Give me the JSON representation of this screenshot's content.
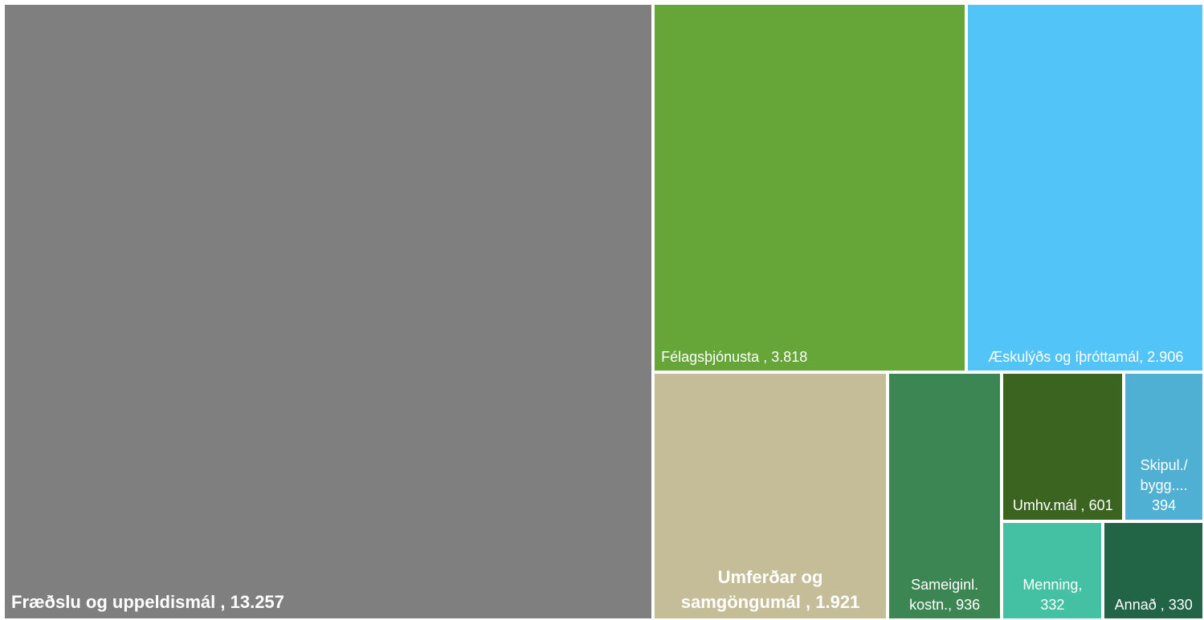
{
  "chart_data": {
    "type": "treemap",
    "categories": [
      "Fræðslu og uppeldismál ,",
      "Félagsþjónusta ,",
      "Æskulýðs og íþróttamál,",
      "Umferðar og samgöngumál ,",
      "Sameiginl. kostn.,",
      "Umhv.mál ,",
      "Skipul./ bygg....",
      "Menning,",
      "Annað ,"
    ],
    "values": [
      13257,
      3818,
      2906,
      1921,
      936,
      601,
      394,
      332,
      330
    ],
    "value_labels": [
      "13.257",
      "3.818",
      "2.906",
      "1.921",
      "936",
      "601",
      "394",
      "332",
      "330"
    ],
    "colors": [
      "#7f7f7f",
      "#66a638",
      "#52c4f7",
      "#c5bd98",
      "#3c8653",
      "#3c6421",
      "#4fb0d3",
      "#43c1a2",
      "#216446"
    ]
  }
}
